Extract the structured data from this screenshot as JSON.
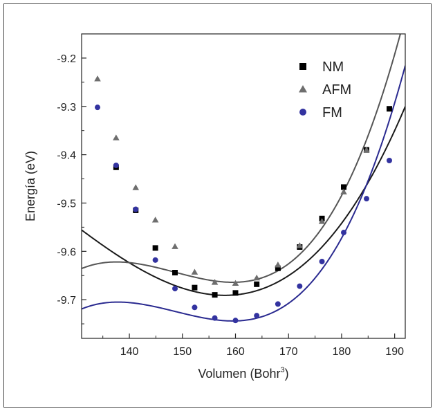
{
  "chart_data": {
    "type": "scatter",
    "xlabel": "Volumen (Bohr",
    "xlabel_sup": "3",
    "xlabel_close": ")",
    "ylabel": "Energía (eV)",
    "xlim": [
      131,
      192
    ],
    "ylim": [
      -9.78,
      -9.15
    ],
    "xticks": [
      140,
      150,
      160,
      170,
      180,
      190
    ],
    "yticks": [
      -9.2,
      -9.3,
      -9.4,
      -9.5,
      -9.6,
      -9.7
    ],
    "ytick_labels": [
      "-9.2",
      "-9.3",
      "-9.4",
      "-9.5",
      "-9.6",
      "-9.7"
    ],
    "legend_position": "top-right",
    "grid": false,
    "series": [
      {
        "name": "NM",
        "marker": "square",
        "color": "#000000",
        "line_color": "#1a1a1a",
        "x": [
          137.5,
          141.2,
          144.9,
          148.6,
          152.3,
          156.1,
          160.0,
          164.0,
          168.0,
          172.1,
          176.3,
          180.4,
          184.7,
          189.0
        ],
        "y": [
          -9.426,
          -9.515,
          -9.593,
          -9.644,
          -9.675,
          -9.69,
          -9.686,
          -9.668,
          -9.635,
          -9.591,
          -9.532,
          -9.467,
          -9.39,
          -9.305
        ],
        "fit": {
          "E0": -9.691,
          "V0": 158.0,
          "a": 0.000253,
          "b": 2.5e-06
        }
      },
      {
        "name": "AFM",
        "marker": "triangle",
        "color": "#6e6e6e",
        "line_color": "#555555",
        "x": [
          134.0,
          137.5,
          141.2,
          144.9,
          148.6,
          152.3,
          156.1,
          160.0,
          164.0,
          168.0,
          172.1,
          176.3,
          180.4,
          184.7
        ],
        "y": [
          -9.243,
          -9.365,
          -9.468,
          -9.535,
          -9.59,
          -9.643,
          -9.664,
          -9.666,
          -9.655,
          -9.628,
          -9.588,
          -9.538,
          -9.477,
          -9.39
        ],
        "fit": {
          "E0": -9.664,
          "V0": 159.5,
          "a": 0.000263,
          "b": 8e-06
        }
      },
      {
        "name": "FM",
        "marker": "circle",
        "color": "#3333a0",
        "line_color": "#2a2a90",
        "x": [
          134.0,
          137.5,
          141.2,
          144.9,
          148.6,
          152.3,
          156.1,
          160.0,
          164.0,
          168.0,
          172.1,
          176.3,
          180.4,
          184.7,
          189.0
        ],
        "y": [
          -9.302,
          -9.422,
          -9.513,
          -9.618,
          -9.677,
          -9.716,
          -9.738,
          -9.743,
          -9.733,
          -9.709,
          -9.672,
          -9.621,
          -9.561,
          -9.491,
          -9.412
        ],
        "fit": {
          "E0": -9.744,
          "V0": 159.5,
          "a": 0.00025,
          "b": 7.7e-06
        }
      }
    ]
  }
}
